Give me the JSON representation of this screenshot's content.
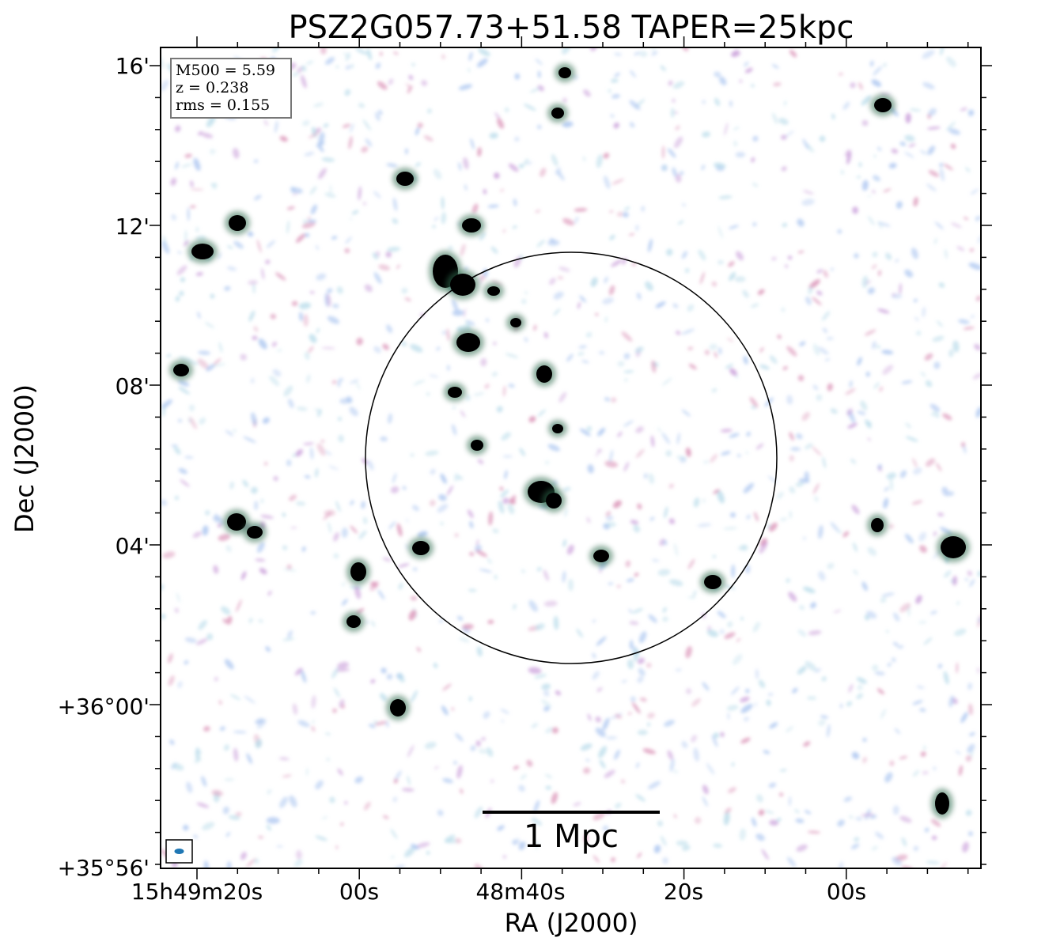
{
  "title": "PSZ2G057.73+51.58 TAPER=25kpc",
  "axes": {
    "xlabel": "RA (J2000)",
    "ylabel": "Dec (J2000)",
    "x_ticks": [
      "15h49m20s",
      "00s",
      "48m40s",
      "20s",
      "00s"
    ],
    "y_ticks": [
      "16'",
      "12'",
      "08'",
      "04'",
      "+36°00'",
      "+35°56'"
    ]
  },
  "info_box": {
    "m500": "M500 = 5.59",
    "z": "z = 0.238",
    "rms": "rms = 0.155"
  },
  "scale_bar": {
    "label": "1 Mpc"
  },
  "colors": {
    "frame": "#000000",
    "noise_blue": "#a9c4f0",
    "noise_cyan": "#b9dcea",
    "noise_purple": "#c79ad8",
    "noise_pink": "#d98fb4",
    "source_core": "#000000",
    "source_halo": "#2f6b4e",
    "beam": "#1f77b4"
  }
}
